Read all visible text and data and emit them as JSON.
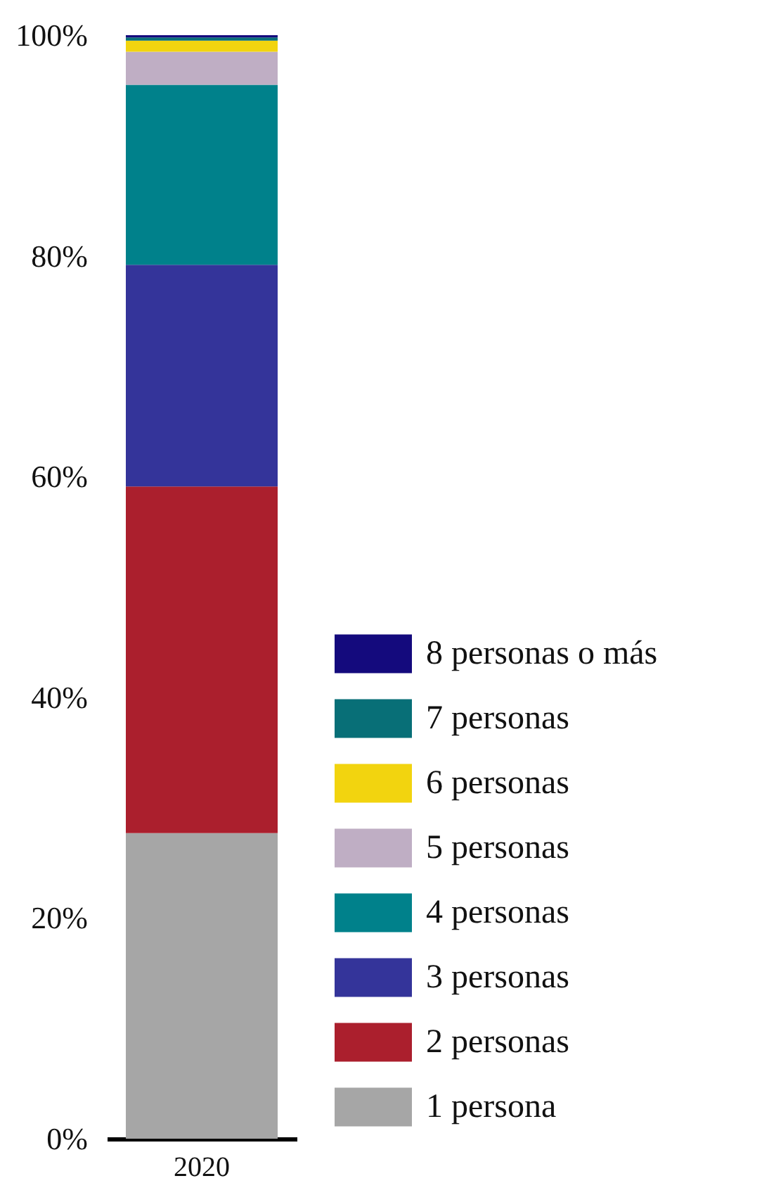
{
  "chart_data": {
    "type": "bar",
    "stacked": true,
    "categories": [
      "2020"
    ],
    "series": [
      {
        "name": "1 persona",
        "color": "#a6a6a6",
        "values": [
          27.7
        ]
      },
      {
        "name": "2 personas",
        "color": "#ab1f2d",
        "values": [
          31.4
        ]
      },
      {
        "name": "3 personas",
        "color": "#34349a",
        "values": [
          20.1
        ]
      },
      {
        "name": "4 personas",
        "color": "#00818b",
        "values": [
          16.3
        ]
      },
      {
        "name": "5 personas",
        "color": "#bfaec4",
        "values": [
          3.0
        ]
      },
      {
        "name": "6 personas",
        "color": "#f2d40f",
        "values": [
          1.0
        ]
      },
      {
        "name": "7 personas",
        "color": "#086f77",
        "values": [
          0.3
        ]
      },
      {
        "name": "8 personas o más",
        "color": "#140a7d",
        "values": [
          0.2
        ]
      }
    ],
    "ylim": [
      0,
      100
    ],
    "yticks": [
      {
        "value": 0,
        "label": "0%"
      },
      {
        "value": 20,
        "label": "20%"
      },
      {
        "value": 40,
        "label": "40%"
      },
      {
        "value": 60,
        "label": "60%"
      },
      {
        "value": 80,
        "label": "80%"
      },
      {
        "value": 100,
        "label": "100%"
      }
    ],
    "grid": false,
    "legend": "bottom right"
  }
}
